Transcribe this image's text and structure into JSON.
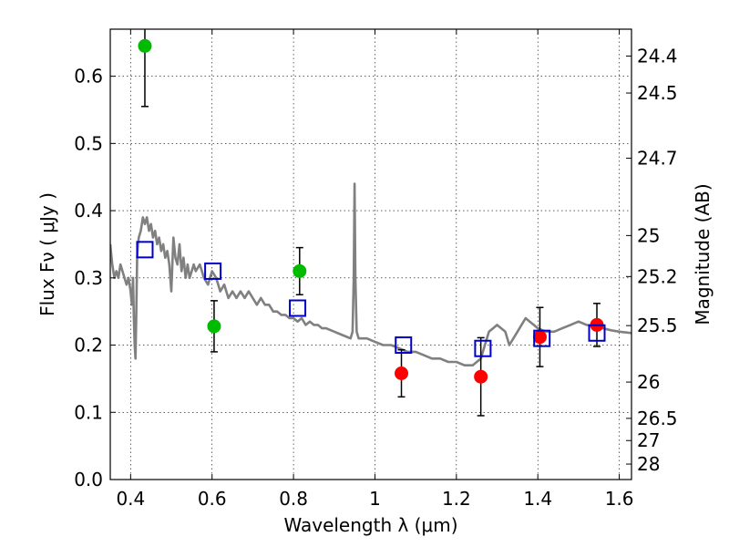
{
  "chart_data": {
    "type": "scatter",
    "xlabel": "Wavelength  λ (μm)",
    "ylabel": "Flux  Fν  ( μJy )",
    "ylabel_right": "Magnitude (AB)",
    "xlim": [
      0.35,
      1.63
    ],
    "ylim": [
      0.0,
      0.67
    ],
    "grid": true,
    "x_ticks": [
      {
        "value": 0.4,
        "label": "0.4"
      },
      {
        "value": 0.6,
        "label": "0.6"
      },
      {
        "value": 0.8,
        "label": "0.8"
      },
      {
        "value": 1.0,
        "label": "1"
      },
      {
        "value": 1.2,
        "label": "1.2"
      },
      {
        "value": 1.4,
        "label": "1.4"
      },
      {
        "value": 1.6,
        "label": "1.6"
      }
    ],
    "y_ticks": [
      {
        "value": 0.0,
        "label": "0.0"
      },
      {
        "value": 0.1,
        "label": "0.1"
      },
      {
        "value": 0.2,
        "label": "0.2"
      },
      {
        "value": 0.3,
        "label": "0.3"
      },
      {
        "value": 0.4,
        "label": "0.4"
      },
      {
        "value": 0.5,
        "label": "0.5"
      },
      {
        "value": 0.6,
        "label": "0.6"
      }
    ],
    "right_ticks": [
      {
        "label": "24.4",
        "flux": 0.63
      },
      {
        "label": "24.5",
        "flux": 0.575
      },
      {
        "label": "24.7",
        "flux": 0.478
      },
      {
        "label": "25",
        "flux": 0.363
      },
      {
        "label": "25.2",
        "flux": 0.302
      },
      {
        "label": "25.5",
        "flux": 0.229
      },
      {
        "label": "26",
        "flux": 0.145
      },
      {
        "label": "26.5",
        "flux": 0.091
      },
      {
        "label": "27",
        "flux": 0.058
      },
      {
        "label": "28",
        "flux": 0.023
      }
    ],
    "series": [
      {
        "color": "#808080",
        "kind": "line",
        "x": [
          0.35,
          0.355,
          0.36,
          0.365,
          0.37,
          0.375,
          0.38,
          0.385,
          0.39,
          0.395,
          0.4,
          0.403,
          0.406,
          0.408,
          0.41,
          0.412,
          0.414,
          0.416,
          0.418,
          0.42,
          0.425,
          0.43,
          0.435,
          0.44,
          0.445,
          0.45,
          0.455,
          0.46,
          0.465,
          0.47,
          0.475,
          0.48,
          0.485,
          0.49,
          0.495,
          0.5,
          0.505,
          0.51,
          0.515,
          0.52,
          0.525,
          0.53,
          0.535,
          0.54,
          0.545,
          0.55,
          0.555,
          0.56,
          0.57,
          0.58,
          0.59,
          0.6,
          0.61,
          0.62,
          0.63,
          0.64,
          0.65,
          0.66,
          0.67,
          0.68,
          0.69,
          0.7,
          0.71,
          0.72,
          0.73,
          0.74,
          0.75,
          0.76,
          0.77,
          0.78,
          0.79,
          0.8,
          0.81,
          0.82,
          0.83,
          0.84,
          0.85,
          0.86,
          0.87,
          0.88,
          0.9,
          0.92,
          0.94,
          0.945,
          0.948,
          0.95,
          0.952,
          0.955,
          0.96,
          0.98,
          1.0,
          1.02,
          1.04,
          1.06,
          1.08,
          1.1,
          1.12,
          1.14,
          1.16,
          1.18,
          1.2,
          1.22,
          1.24,
          1.26,
          1.27,
          1.28,
          1.29,
          1.3,
          1.31,
          1.32,
          1.33,
          1.34,
          1.35,
          1.36,
          1.37,
          1.38,
          1.39,
          1.4,
          1.42,
          1.44,
          1.46,
          1.48,
          1.5,
          1.52,
          1.54,
          1.56,
          1.58,
          1.6,
          1.63
        ],
        "y": [
          0.35,
          0.32,
          0.3,
          0.31,
          0.3,
          0.32,
          0.31,
          0.3,
          0.29,
          0.3,
          0.28,
          0.26,
          0.3,
          0.24,
          0.2,
          0.18,
          0.25,
          0.33,
          0.35,
          0.36,
          0.37,
          0.39,
          0.38,
          0.39,
          0.37,
          0.38,
          0.36,
          0.37,
          0.35,
          0.36,
          0.34,
          0.35,
          0.33,
          0.34,
          0.32,
          0.28,
          0.36,
          0.33,
          0.32,
          0.35,
          0.31,
          0.33,
          0.3,
          0.32,
          0.3,
          0.31,
          0.32,
          0.31,
          0.32,
          0.3,
          0.29,
          0.31,
          0.3,
          0.28,
          0.29,
          0.27,
          0.28,
          0.27,
          0.28,
          0.27,
          0.28,
          0.27,
          0.26,
          0.27,
          0.26,
          0.26,
          0.25,
          0.25,
          0.245,
          0.245,
          0.24,
          0.24,
          0.235,
          0.24,
          0.23,
          0.235,
          0.23,
          0.23,
          0.225,
          0.225,
          0.22,
          0.215,
          0.21,
          0.22,
          0.3,
          0.44,
          0.3,
          0.22,
          0.21,
          0.21,
          0.205,
          0.2,
          0.2,
          0.195,
          0.19,
          0.19,
          0.185,
          0.18,
          0.18,
          0.175,
          0.175,
          0.17,
          0.17,
          0.18,
          0.2,
          0.22,
          0.225,
          0.23,
          0.225,
          0.22,
          0.2,
          0.21,
          0.22,
          0.23,
          0.24,
          0.235,
          0.23,
          0.225,
          0.22,
          0.22,
          0.225,
          0.23,
          0.235,
          0.23,
          0.228,
          0.225,
          0.222,
          0.22,
          0.218
        ]
      },
      {
        "color": "#00bb00",
        "kind": "points",
        "x": [
          0.435,
          0.605,
          0.815
        ],
        "y": [
          0.645,
          0.228,
          0.31
        ],
        "yerr": [
          0.09,
          0.038,
          0.035
        ]
      },
      {
        "color": "#ff0000",
        "kind": "points",
        "x": [
          1.065,
          1.26,
          1.405,
          1.545
        ],
        "y": [
          0.158,
          0.153,
          0.212,
          0.23
        ],
        "yerr": [
          0.035,
          0.058,
          0.044,
          0.032
        ]
      },
      {
        "color": "#0000cc",
        "kind": "squares",
        "x": [
          0.435,
          0.602,
          0.81,
          1.07,
          1.265,
          1.41,
          1.545
        ],
        "y": [
          0.342,
          0.31,
          0.255,
          0.2,
          0.195,
          0.21,
          0.218
        ]
      }
    ]
  }
}
